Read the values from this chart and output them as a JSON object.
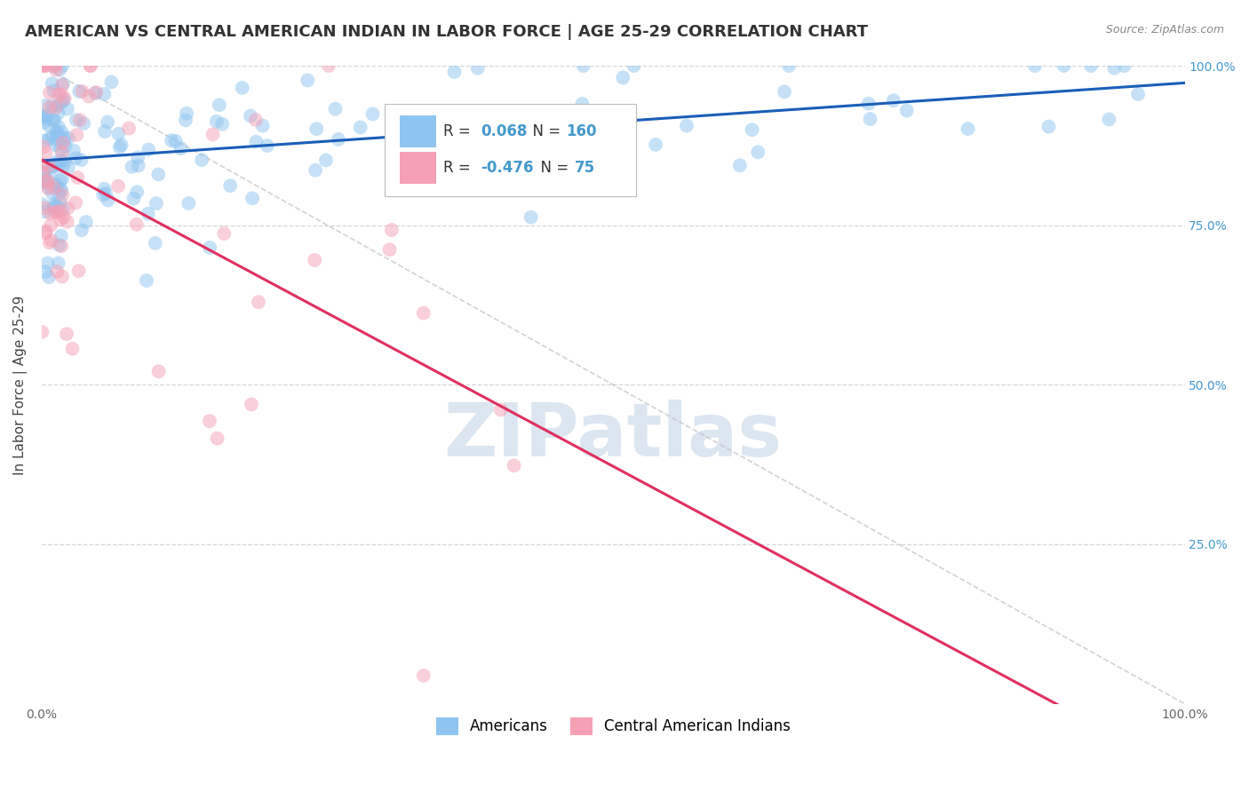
{
  "title": "AMERICAN VS CENTRAL AMERICAN INDIAN IN LABOR FORCE | AGE 25-29 CORRELATION CHART",
  "source": "Source: ZipAtlas.com",
  "ylabel": "In Labor Force | Age 25-29",
  "xlim": [
    0,
    1
  ],
  "ylim": [
    0,
    1
  ],
  "r_american": 0.068,
  "n_american": 160,
  "r_central": -0.476,
  "n_central": 75,
  "american_color": "#8ec4f0",
  "central_color": "#f5a0b5",
  "trend_american_color": "#1a5eb8",
  "trend_central_color": "#e03060",
  "background_color": "#ffffff",
  "grid_color": "#cccccc",
  "title_fontsize": 13,
  "axis_label_fontsize": 11,
  "tick_fontsize": 10,
  "watermark_text": "ZIPatlas",
  "watermark_color": "#dce6f0",
  "watermark_fontsize": 60,
  "dot_size": 130,
  "dot_alpha": 0.5,
  "seed": 12345
}
